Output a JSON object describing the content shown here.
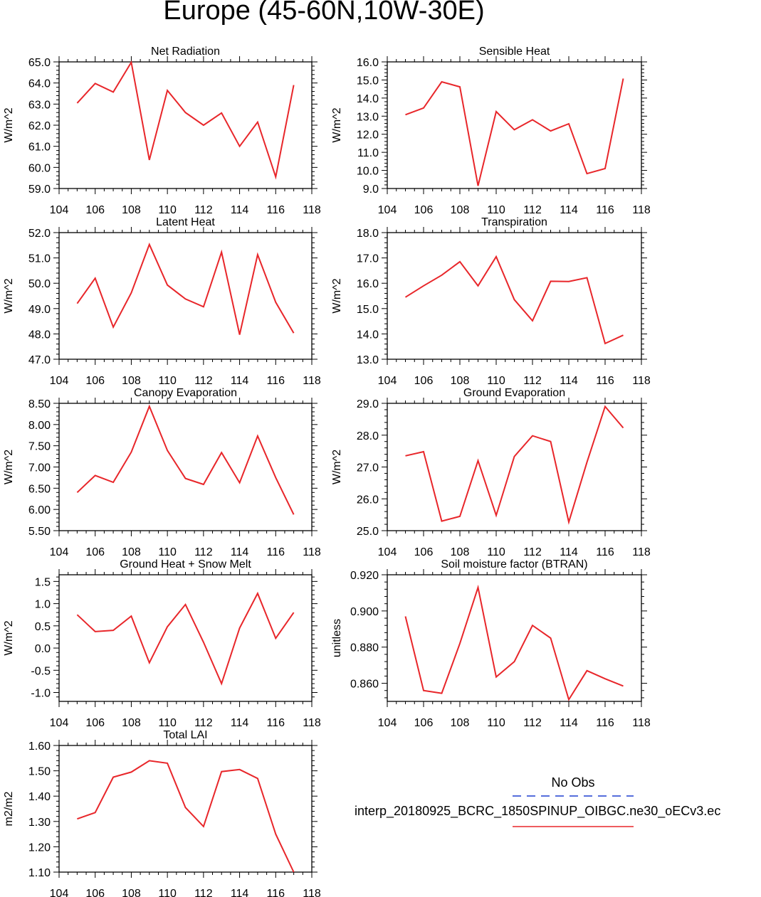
{
  "title": "Europe (45-60N,10W-30E)",
  "colors": {
    "series": "#e8262a",
    "obs": "#1f3fd1",
    "axis": "#000000"
  },
  "legend": {
    "obs_label": "No Obs",
    "run_label": "interp_20180925_BCRC_1850SPINUP_OIBGC.ne30_oECv3.ec"
  },
  "chart_data": [
    {
      "type": "line",
      "title": "Net Radiation",
      "ylabel": "W/m^2",
      "xlim": [
        104,
        118
      ],
      "xticks": [
        104,
        106,
        108,
        110,
        112,
        114,
        116,
        118
      ],
      "ylim": [
        59,
        65
      ],
      "yticks": [
        59,
        60,
        61,
        62,
        63,
        64,
        65
      ],
      "ydec": 1,
      "x": [
        105,
        106,
        107,
        108,
        109,
        110,
        111,
        112,
        113,
        114,
        115,
        116,
        117
      ],
      "y": [
        63.05,
        63.98,
        63.57,
        64.98,
        60.35,
        63.65,
        62.6,
        62.0,
        62.58,
        61.0,
        62.15,
        59.55,
        63.9
      ]
    },
    {
      "type": "line",
      "title": "Sensible Heat",
      "ylabel": "W/m^2",
      "xlim": [
        104,
        118
      ],
      "xticks": [
        104,
        106,
        108,
        110,
        112,
        114,
        116,
        118
      ],
      "ylim": [
        9,
        16
      ],
      "yticks": [
        9,
        10,
        11,
        12,
        13,
        14,
        15,
        16
      ],
      "ydec": 1,
      "x": [
        105,
        106,
        107,
        108,
        109,
        110,
        111,
        112,
        113,
        114,
        115,
        116,
        117
      ],
      "y": [
        13.08,
        13.45,
        14.9,
        14.62,
        9.15,
        13.25,
        12.25,
        12.8,
        12.18,
        12.58,
        9.82,
        10.1,
        15.08
      ]
    },
    {
      "type": "line",
      "title": "Latent Heat",
      "ylabel": "W/m^2",
      "xlim": [
        104,
        118
      ],
      "xticks": [
        104,
        106,
        108,
        110,
        112,
        114,
        116,
        118
      ],
      "ylim": [
        47,
        52
      ],
      "yticks": [
        47,
        48,
        49,
        50,
        51,
        52
      ],
      "ydec": 1,
      "x": [
        105,
        106,
        107,
        108,
        109,
        110,
        111,
        112,
        113,
        114,
        115,
        116,
        117
      ],
      "y": [
        49.2,
        50.2,
        48.27,
        49.62,
        51.53,
        49.93,
        49.38,
        49.07,
        51.23,
        47.97,
        51.13,
        49.25,
        48.03
      ]
    },
    {
      "type": "line",
      "title": "Transpiration",
      "ylabel": "W/m^2",
      "xlim": [
        104,
        118
      ],
      "xticks": [
        104,
        106,
        108,
        110,
        112,
        114,
        116,
        118
      ],
      "ylim": [
        13,
        18
      ],
      "yticks": [
        13,
        14,
        15,
        16,
        17,
        18
      ],
      "ydec": 1,
      "x": [
        105,
        106,
        107,
        108,
        109,
        110,
        111,
        112,
        113,
        114,
        115,
        116,
        117
      ],
      "y": [
        15.45,
        15.9,
        16.32,
        16.85,
        15.9,
        17.05,
        15.35,
        14.52,
        16.08,
        16.07,
        16.22,
        13.62,
        13.95
      ]
    },
    {
      "type": "line",
      "title": "Canopy Evaporation",
      "ylabel": "W/m^2",
      "xlim": [
        104,
        118
      ],
      "xticks": [
        104,
        106,
        108,
        110,
        112,
        114,
        116,
        118
      ],
      "ylim": [
        5.5,
        8.5
      ],
      "yticks": [
        5.5,
        6.0,
        6.5,
        7.0,
        7.5,
        8.0,
        8.5
      ],
      "ydec": 2,
      "x": [
        105,
        106,
        107,
        108,
        109,
        110,
        111,
        112,
        113,
        114,
        115,
        116,
        117
      ],
      "y": [
        6.4,
        6.8,
        6.64,
        7.35,
        8.43,
        7.39,
        6.73,
        6.59,
        7.34,
        6.63,
        7.73,
        6.75,
        5.88
      ]
    },
    {
      "type": "line",
      "title": "Ground Evaporation",
      "ylabel": "W/m^2",
      "xlim": [
        104,
        118
      ],
      "xticks": [
        104,
        106,
        108,
        110,
        112,
        114,
        116,
        118
      ],
      "ylim": [
        25,
        29
      ],
      "yticks": [
        25,
        26,
        27,
        28,
        29
      ],
      "ydec": 1,
      "x": [
        105,
        106,
        107,
        108,
        109,
        110,
        111,
        112,
        113,
        114,
        115,
        116,
        117
      ],
      "y": [
        27.35,
        27.48,
        25.3,
        25.45,
        27.2,
        25.48,
        27.33,
        27.98,
        27.8,
        25.27,
        27.15,
        28.9,
        28.23
      ]
    },
    {
      "type": "line",
      "title": "Ground Heat + Snow Melt",
      "ylabel": "W/m^2",
      "xlim": [
        104,
        118
      ],
      "xticks": [
        104,
        106,
        108,
        110,
        112,
        114,
        116,
        118
      ],
      "ylim": [
        -1.2,
        1.65
      ],
      "yticks": [
        -1.0,
        -0.5,
        0.0,
        0.5,
        1.0,
        1.5
      ],
      "ydec": 1,
      "x": [
        105,
        106,
        107,
        108,
        109,
        110,
        111,
        112,
        113,
        114,
        115,
        116,
        117
      ],
      "y": [
        0.75,
        0.37,
        0.4,
        0.72,
        -0.33,
        0.48,
        0.98,
        0.13,
        -0.8,
        0.45,
        1.23,
        0.22,
        0.8
      ]
    },
    {
      "type": "line",
      "title": "Soil moisture factor (BTRAN)",
      "ylabel": "unitless",
      "xlim": [
        104,
        118
      ],
      "xticks": [
        104,
        106,
        108,
        110,
        112,
        114,
        116,
        118
      ],
      "ylim": [
        0.85,
        0.92
      ],
      "yticks": [
        0.86,
        0.88,
        0.9,
        0.92
      ],
      "ydec": 3,
      "x": [
        105,
        106,
        107,
        108,
        109,
        110,
        111,
        112,
        113,
        114,
        115,
        116,
        117
      ],
      "y": [
        0.897,
        0.856,
        0.8545,
        0.882,
        0.913,
        0.8635,
        0.872,
        0.892,
        0.885,
        0.851,
        0.867,
        0.8625,
        0.8585
      ]
    },
    {
      "type": "line",
      "title": "Total LAI",
      "ylabel": "m2/m2",
      "xlim": [
        104,
        118
      ],
      "xticks": [
        104,
        106,
        108,
        110,
        112,
        114,
        116,
        118
      ],
      "ylim": [
        1.1,
        1.6
      ],
      "yticks": [
        1.1,
        1.2,
        1.3,
        1.4,
        1.5,
        1.6
      ],
      "ydec": 2,
      "x": [
        105,
        106,
        107,
        108,
        109,
        110,
        111,
        112,
        113,
        114,
        115,
        116,
        117
      ],
      "y": [
        1.31,
        1.335,
        1.475,
        1.495,
        1.54,
        1.53,
        1.355,
        1.28,
        1.497,
        1.505,
        1.47,
        1.25,
        1.1
      ]
    }
  ]
}
